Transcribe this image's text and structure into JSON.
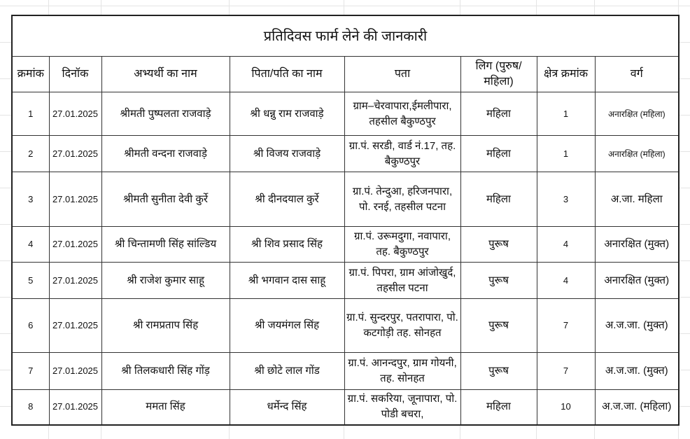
{
  "title": "प्रतिदिवस फार्म लेने की जानकारी",
  "headers": [
    "क्रमांक",
    "दिनॉक",
    "अभ्यर्थी का नाम",
    "पिता/पति का नाम",
    "पता",
    "लिग (पुरुष/ महिला)",
    "क्षेत्र क्रमांक",
    "वर्ग"
  ],
  "rows": [
    {
      "sno": "1",
      "date": "27.01.2025",
      "name": "श्रीमती पुष्पलता राजवाड़े",
      "father": "श्री धन्नु राम राजवाड़े",
      "address": "ग्राम–चेरवापारा,ईमलीपारा, तहसील बैकुण्ठपुर",
      "gender": "महिला",
      "area": "1",
      "category": "अनारक्षित (महिला)"
    },
    {
      "sno": "2",
      "date": "27.01.2025",
      "name": "श्रीमती वन्दना राजवाड़े",
      "father": "श्री विजय राजवाड़े",
      "address": "ग्रा.पं. सरडी, वार्ड नं.17, तह. बैकुण्ठपुर",
      "gender": "महिला",
      "area": "1",
      "category": "अनारक्षित (महिला)"
    },
    {
      "sno": "3",
      "date": "27.01.2025",
      "name": "श्रीमती सुनीता देवी कुर्रे",
      "father": "श्री दीनदयाल कुर्रे",
      "address": "ग्रा.पं. तेन्दुआ, हरिजनपारा, पो. रनई, तहसील पटना",
      "gender": "महिला",
      "area": "3",
      "category": "अ.जा. महिला"
    },
    {
      "sno": "4",
      "date": "27.01.2025",
      "name": "श्री चिन्तामणी सिंह सांल्डिय",
      "father": "श्री शिव प्रसाद सिंह",
      "address": "ग्रा.पं. उरूमदुगा, नवापारा, तह. बैकुण्ठपुर",
      "gender": "पुरूष",
      "area": "4",
      "category": "अनारक्षित (मुक्त)"
    },
    {
      "sno": "5",
      "date": "27.01.2025",
      "name": "श्री राजेश कुमार साहू",
      "father": "श्री भगवान दास साहू",
      "address": "ग्रा.पं. पिपरा, ग्राम आंजोखुर्द, तहसील पटना",
      "gender": "पुरूष",
      "area": "4",
      "category": "अनारक्षित (मुक्त)"
    },
    {
      "sno": "6",
      "date": "27.01.2025",
      "name": "श्री रामप्रताप सिंह",
      "father": "श्री जयमंगल सिंह",
      "address": "ग्रा.पं. सुन्दरपुर, पतरापारा, पो. कटगोड़ी तह. सोनहत",
      "gender": "पुरूष",
      "area": "7",
      "category": "अ.ज.जा. (मुक्त)"
    },
    {
      "sno": "7",
      "date": "27.01.2025",
      "name": "श्री तिलकधारी सिंह गोंड़",
      "father": "श्री छोटे लाल गोंड",
      "address": "ग्रा.पं. आनन्दपुर, ग्राम गोयनी, तह. सोनहत",
      "gender": "पुरूष",
      "area": "7",
      "category": "अ.ज.जा. (मुक्त)"
    },
    {
      "sno": "8",
      "date": "27.01.2025",
      "name": "ममता सिंह",
      "father": "धर्मेन्द सिंह",
      "address": "ग्रा.पं. सकरिया, जूनापारा, पो. पोडी बचरा,",
      "gender": "महिला",
      "area": "10",
      "category": "अ.ज.जा. (महिला)"
    }
  ]
}
